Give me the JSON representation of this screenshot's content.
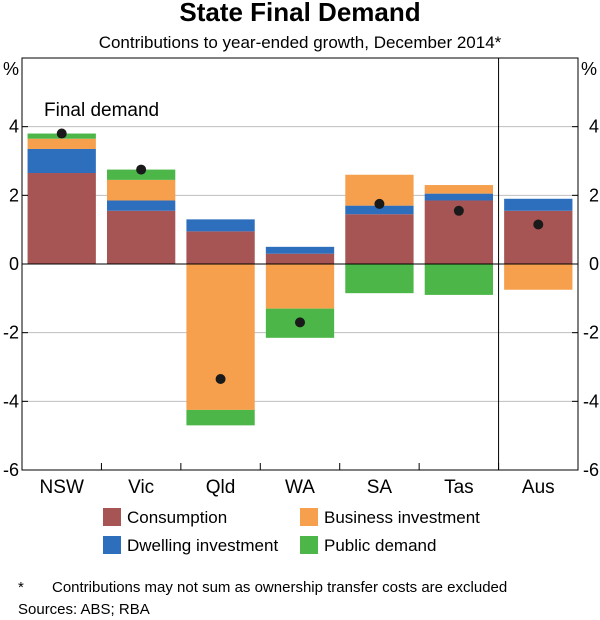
{
  "chart_data": {
    "type": "bar",
    "stacked": true,
    "title": "State Final Demand",
    "subtitle": "Contributions to year-ended growth, December 2014*",
    "ylabel_left": "%",
    "ylabel_right": "%",
    "ylim": [
      -6,
      6
    ],
    "yticks": [
      -6,
      -4,
      -2,
      0,
      2,
      4
    ],
    "ytick_labels": [
      "-6",
      "-4",
      "-2",
      "0",
      "2",
      "4"
    ],
    "categories": [
      "NSW",
      "Vic",
      "Qld",
      "WA",
      "SA",
      "Tas",
      "Aus"
    ],
    "series": [
      {
        "name": "Consumption",
        "color": "#a65454",
        "values": [
          2.65,
          1.55,
          0.95,
          0.3,
          1.45,
          1.85,
          1.55
        ]
      },
      {
        "name": "Dwelling investment",
        "color": "#2e6fbd",
        "values": [
          0.7,
          0.3,
          0.35,
          0.2,
          0.25,
          0.2,
          0.35
        ]
      },
      {
        "name": "Business investment",
        "color": "#f6a04d",
        "values": [
          0.3,
          0.6,
          -4.25,
          -1.3,
          0.9,
          0.25,
          -0.75
        ]
      },
      {
        "name": "Public demand",
        "color": "#4cb748",
        "values": [
          0.15,
          0.3,
          -0.45,
          -0.85,
          -0.85,
          -0.9,
          0.0
        ]
      }
    ],
    "final_demand": {
      "name": "Final demand",
      "values": [
        3.8,
        2.75,
        -3.35,
        -1.7,
        1.75,
        1.55,
        1.15
      ]
    },
    "annotation": "Final demand",
    "legend": [
      {
        "label": "Consumption",
        "color": "#a65454"
      },
      {
        "label": "Business investment",
        "color": "#f6a04d"
      },
      {
        "label": "Dwelling investment",
        "color": "#2e6fbd"
      },
      {
        "label": "Public demand",
        "color": "#4cb748"
      }
    ],
    "grid": true,
    "footnote": "Contributions may not sum as ownership transfer costs are excluded",
    "footnote_mark": "*",
    "sources": "Sources:   ABS; RBA"
  }
}
